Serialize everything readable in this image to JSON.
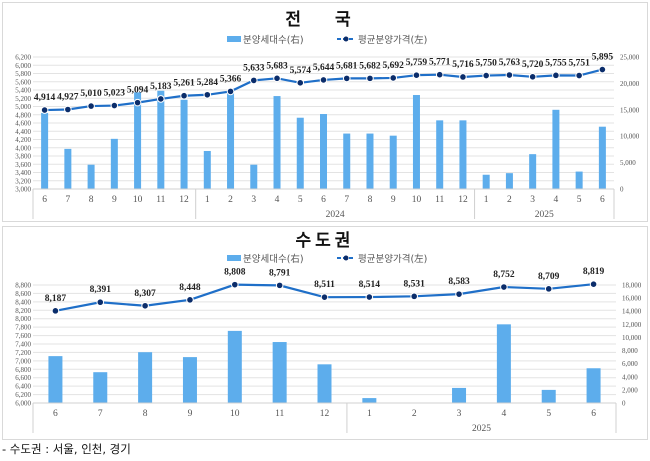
{
  "colors": {
    "bar": "#5DADEC",
    "line": "#1F6FC8",
    "marker": "#0B2D6B",
    "grid": "#e3e3e3"
  },
  "chart_data": [
    {
      "type": "bar+line",
      "title": "전 국",
      "legend": [
        "분양세대수(右)",
        "평균분양가격(左)"
      ],
      "legend_position": "top",
      "grid": true,
      "categories": [
        "6",
        "7",
        "8",
        "9",
        "10",
        "11",
        "12",
        "1",
        "2",
        "3",
        "4",
        "5",
        "6",
        "7",
        "8",
        "9",
        "10",
        "11",
        "12",
        "1",
        "2",
        "3",
        "4",
        "5",
        "6"
      ],
      "year_groups": [
        {
          "label": "",
          "count": 7
        },
        {
          "label": "2024",
          "count": 12
        },
        {
          "label": "2025",
          "count": 6
        }
      ],
      "y_left": {
        "min": 3000,
        "max": 6200,
        "step": 200
      },
      "y_right": {
        "min": 0,
        "max": 25000,
        "step": 5000
      },
      "series": [
        {
          "name": "분양세대수(右)",
          "type": "bar",
          "axis": "right",
          "values": [
            14400,
            7600,
            4600,
            9500,
            18300,
            18600,
            16900,
            7200,
            18600,
            4600,
            17600,
            13500,
            14200,
            10500,
            10500,
            10100,
            17800,
            13000,
            13000,
            2700,
            3000,
            6600,
            15000,
            3300,
            11800
          ]
        },
        {
          "name": "평균분양가격(左)",
          "type": "line",
          "axis": "left",
          "values": [
            4914,
            4927,
            5010,
            5023,
            5094,
            5183,
            5261,
            5284,
            5366,
            5633,
            5683,
            5574,
            5644,
            5681,
            5682,
            5692,
            5759,
            5771,
            5716,
            5750,
            5763,
            5720,
            5755,
            5751,
            5895
          ],
          "labels": [
            "4,914",
            "4,927",
            "5,010",
            "5,023",
            "5,094",
            "5,183",
            "5,261",
            "5,284",
            "5,366",
            "5,633",
            "5,683",
            "5,574",
            "5,644",
            "5,681",
            "5,682",
            "5,692",
            "5,759",
            "5,771",
            "5,716",
            "5,750",
            "5,763",
            "5,720",
            "5,755",
            "5,751",
            "5,895"
          ]
        }
      ]
    },
    {
      "type": "bar+line",
      "title": "수도권",
      "legend": [
        "분양세대수(右)",
        "평균분양가격(左)"
      ],
      "legend_position": "top",
      "grid": true,
      "categories": [
        "6",
        "7",
        "8",
        "9",
        "10",
        "11",
        "12",
        "1",
        "2",
        "3",
        "4",
        "5",
        "6"
      ],
      "year_groups": [
        {
          "label": "",
          "count": 7
        },
        {
          "label": "2025",
          "count": 6
        }
      ],
      "y_left": {
        "min": 6000,
        "max": 8800,
        "step": 200
      },
      "y_right": {
        "min": 0,
        "max": 18000,
        "step": 2000
      },
      "series": [
        {
          "name": "분양세대수(右)",
          "type": "bar",
          "axis": "right",
          "values": [
            7150,
            4700,
            7750,
            7000,
            11000,
            9300,
            5900,
            750,
            0,
            2300,
            12000,
            2000,
            5300
          ]
        },
        {
          "name": "평균분양가격(左)",
          "type": "line",
          "axis": "left",
          "values": [
            8187,
            8391,
            8307,
            8448,
            8808,
            8791,
            8511,
            8514,
            8531,
            8583,
            8752,
            8709,
            8819
          ],
          "labels": [
            "8,187",
            "8,391",
            "8,307",
            "8,448",
            "8,808",
            "8,791",
            "8,511",
            "8,514",
            "8,531",
            "8,583",
            "8,752",
            "8,709",
            "8,819"
          ]
        }
      ]
    }
  ],
  "footnote": "- 수도권 : 서울, 인천, 경기"
}
